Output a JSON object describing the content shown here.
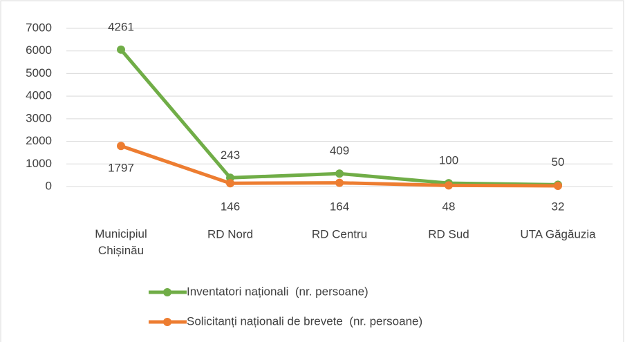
{
  "chart_data": {
    "type": "line",
    "stacked": true,
    "categories": [
      "Municipiul Chișinău",
      "RD Nord",
      "RD Centru",
      "RD Sud",
      "UTA Găgăuzia"
    ],
    "series": [
      {
        "name": "Inventatori naționali  (nr. persoane)",
        "color": "#70ad47",
        "values": [
          4261,
          243,
          409,
          100,
          50
        ]
      },
      {
        "name": "Solicitanți naționali de brevete  (nr. persoane)",
        "color": "#ed7d31",
        "values": [
          1797,
          146,
          164,
          48,
          32
        ]
      }
    ],
    "ylim": [
      0,
      7000
    ],
    "yticks": [
      0,
      1000,
      2000,
      3000,
      4000,
      5000,
      6000,
      7000
    ],
    "grid": true,
    "data_labels": true,
    "legend": "bottom"
  }
}
